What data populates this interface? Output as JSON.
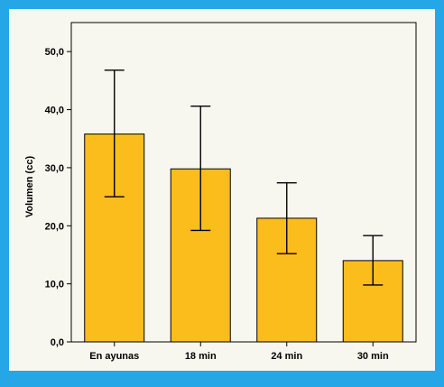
{
  "chart_data": {
    "type": "bar",
    "title": "",
    "xlabel": "",
    "ylabel": "Volumen (cc)",
    "ylim": [
      0,
      55
    ],
    "yticks": [
      0,
      10,
      20,
      30,
      40,
      50
    ],
    "ytick_labels": [
      "0,0",
      "10,0",
      "20,0",
      "30,0",
      "40,0",
      "50,0"
    ],
    "categories": [
      "En ayunas",
      "18 min",
      "24 min",
      "30 min"
    ],
    "values": [
      35.8,
      29.8,
      21.3,
      14.0
    ],
    "error_low": [
      25.0,
      19.2,
      15.2,
      9.8
    ],
    "error_high": [
      46.8,
      40.6,
      27.4,
      18.3
    ],
    "bar_color": "#fbbd1c",
    "grid": false,
    "legend": "none"
  },
  "colors": {
    "frame": "#25a6e6",
    "panel": "#f8f7ef",
    "bar": "#fbbd1c"
  }
}
